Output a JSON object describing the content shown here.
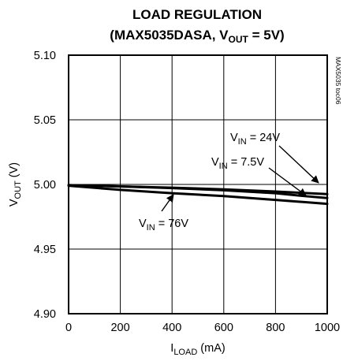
{
  "chart_data": {
    "type": "line",
    "title": {
      "line1": "LOAD REGULATION",
      "line2": {
        "pre": "(MAX5035DASA, V",
        "sub": "OUT",
        "post": " = 5V)"
      }
    },
    "side_note": "MAX5035 toc06",
    "xlabel": {
      "main": "I",
      "sub": "LOAD",
      "post": " (mA)"
    },
    "ylabel": {
      "main": "V",
      "sub": "OUT",
      "post": " (V)"
    },
    "xlim": [
      0,
      1000
    ],
    "ylim": [
      4.9,
      5.1
    ],
    "x_ticks": [
      "0",
      "200",
      "400",
      "600",
      "800",
      "1000"
    ],
    "y_ticks": [
      "5.10",
      "5.05",
      "5.00",
      "4.95",
      "4.90"
    ],
    "x_tick_values": [
      0,
      200,
      400,
      600,
      800,
      1000
    ],
    "y_tick_values": [
      5.1,
      5.05,
      5.0,
      4.95,
      4.9
    ],
    "grid": true,
    "series": [
      {
        "name": "VIN = 24V",
        "x": [
          0,
          200,
          400,
          600,
          800,
          1000
        ],
        "y": [
          4.9995,
          4.9985,
          4.9975,
          4.9962,
          4.9945,
          4.9925
        ]
      },
      {
        "name": "VIN = 7.5V",
        "x": [
          0,
          200,
          400,
          600,
          800,
          900,
          1000
        ],
        "y": [
          4.9995,
          4.9985,
          4.9972,
          4.9955,
          4.9932,
          4.9912,
          4.9895
        ]
      },
      {
        "name": "VIN = 76V",
        "x": [
          0,
          200,
          400,
          600,
          800,
          1000
        ],
        "y": [
          4.999,
          4.9958,
          4.9932,
          4.991,
          4.988,
          4.985
        ]
      }
    ],
    "annotations": [
      {
        "pre": "V",
        "sub": "IN",
        "post": " = 24V",
        "series": 0
      },
      {
        "pre": "V",
        "sub": "IN",
        "post": " = 7.5V",
        "series": 1
      },
      {
        "pre": "V",
        "sub": "IN",
        "post": " = 76V",
        "series": 2
      }
    ]
  }
}
